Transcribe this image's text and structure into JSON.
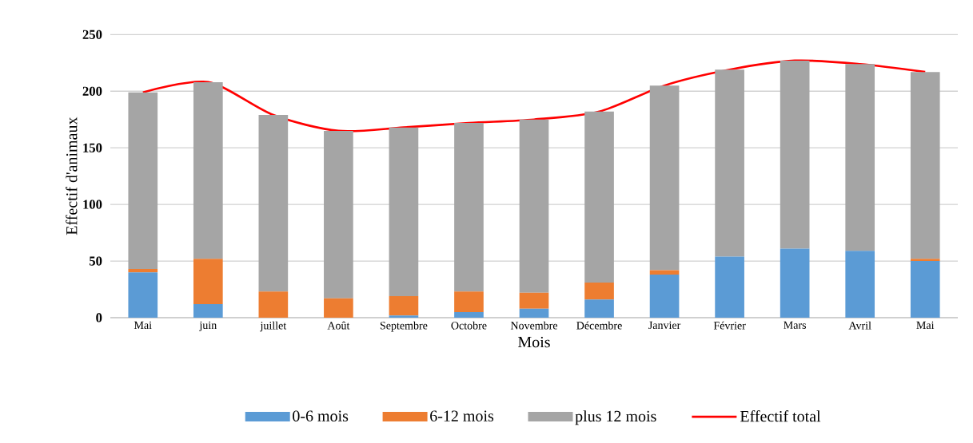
{
  "chart_data": {
    "type": "bar",
    "stacked": true,
    "xlabel": "Mois",
    "ylabel": "Effectif d'animaux",
    "categories": [
      "Mai",
      "juin",
      "juillet",
      "Août",
      "Septembre",
      "Octobre",
      "Novembre",
      "Décembre",
      "Janvier",
      "Février",
      "Mars",
      "Avril",
      "Mai"
    ],
    "series": [
      {
        "name": "0-6 mois",
        "color": "#5b9bd5",
        "values": [
          40,
          12,
          0,
          0,
          2,
          5,
          8,
          16,
          38,
          54,
          61,
          59,
          50
        ]
      },
      {
        "name": "6-12 mois",
        "color": "#ed7d31",
        "values": [
          3,
          40,
          23,
          17,
          17,
          18,
          14,
          15,
          4,
          0,
          0,
          0,
          2
        ]
      },
      {
        "name": "plus 12 mois",
        "color": "#a5a5a5",
        "values": [
          156,
          156,
          156,
          148,
          149,
          149,
          153,
          151,
          163,
          165,
          166,
          165,
          165
        ]
      },
      {
        "name": "Effectif total",
        "type": "line",
        "color": "#ff0000",
        "values": [
          199,
          208,
          179,
          165,
          168,
          172,
          175,
          182,
          205,
          219,
          227,
          224,
          217
        ]
      }
    ],
    "ylim": [
      0,
      250
    ],
    "yticks": [
      0,
      50,
      100,
      150,
      200,
      250
    ],
    "grid": "y",
    "legend": "bottom",
    "marker": "none"
  }
}
